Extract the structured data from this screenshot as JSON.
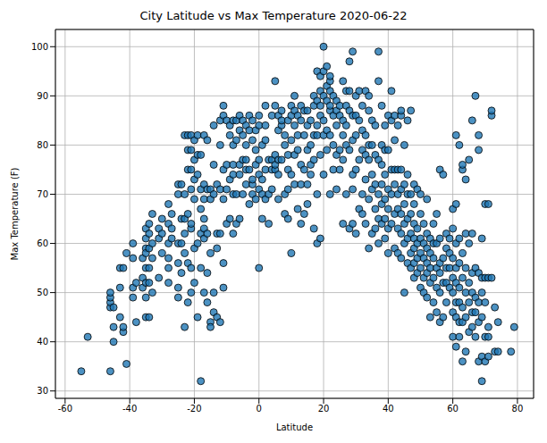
{
  "chart_data": {
    "type": "scatter",
    "title": "City Latitude vs Max Temperature 2020-06-22",
    "x_label": "Latitude",
    "y_label": "Max Temperature (F)",
    "color": "#1f77b4",
    "marker": "circle",
    "grid": true,
    "xlim": [
      -63,
      85
    ],
    "ylim": [
      28.5,
      103.5
    ],
    "xticks": [
      -60,
      -40,
      -20,
      0,
      20,
      40,
      60,
      80
    ],
    "yticks": [
      30,
      40,
      50,
      60,
      70,
      80,
      90,
      100
    ],
    "x": [
      -55,
      -53,
      -46,
      -46,
      -46,
      -46,
      -46,
      -45,
      -45,
      -45,
      -43,
      -43,
      -43,
      -42,
      -42,
      -42,
      -41,
      -41,
      -39,
      -39,
      -39,
      -39,
      -38,
      -38,
      -36,
      -36,
      -36,
      -35,
      -35,
      -35,
      -35,
      -35,
      -35,
      -35,
      -35,
      -34,
      -34,
      -34,
      -34,
      -34,
      -34,
      -33,
      -33,
      -33,
      -33,
      -31,
      -31,
      -31,
      -30,
      -30,
      -30,
      -28,
      -28,
      -28,
      -28,
      -28,
      -28,
      -27,
      -27,
      -27,
      -25,
      -25,
      -25,
      -25,
      -25,
      -25,
      -24,
      -24,
      -24,
      -24,
      -23,
      -23,
      -23,
      -23,
      -23,
      -23,
      -22,
      -22,
      -22,
      -22,
      -22,
      -22,
      -21,
      -21,
      -21,
      -21,
      -21,
      -21,
      -21,
      -21,
      -20,
      -20,
      -20,
      -20,
      -20,
      -20,
      -19,
      -19,
      -19,
      -19,
      -19,
      -18,
      -18,
      -18,
      -18,
      -18,
      -18,
      -17,
      -17,
      -17,
      -17,
      -17,
      -17,
      -17,
      -16,
      -16,
      -16,
      -16,
      -16,
      -15,
      -15,
      -15,
      -15,
      -15,
      -14,
      -14,
      -14,
      -14,
      -14,
      -13,
      -13,
      -13,
      -13,
      -12,
      -12,
      -12,
      -12,
      -12,
      -11,
      -11,
      -11,
      -11,
      -11,
      -11,
      -10,
      -10,
      -10,
      -10,
      -9,
      -9,
      -9,
      -9,
      -8,
      -8,
      -8,
      -8,
      -8,
      -8,
      -7,
      -7,
      -7,
      -7,
      -6,
      -6,
      -6,
      -6,
      -6,
      -5,
      -5,
      -5,
      -5,
      -4,
      -4,
      -4,
      -4,
      -4,
      -3,
      -3,
      -3,
      -3,
      -2,
      -2,
      -2,
      -2,
      -2,
      -1,
      -1,
      -1,
      -1,
      0,
      0,
      0,
      0,
      0,
      0,
      1,
      1,
      1,
      1,
      2,
      2,
      2,
      2,
      2,
      3,
      3,
      3,
      4,
      4,
      4,
      4,
      5,
      5,
      5,
      5,
      5,
      6,
      6,
      6,
      6,
      6,
      7,
      7,
      7,
      7,
      8,
      8,
      8,
      8,
      9,
      9,
      9,
      9,
      9,
      10,
      10,
      10,
      10,
      10,
      11,
      11,
      11,
      11,
      11,
      12,
      12,
      12,
      12,
      13,
      13,
      13,
      13,
      13,
      14,
      14,
      14,
      14,
      15,
      15,
      15,
      15,
      15,
      16,
      16,
      16,
      16,
      17,
      17,
      17,
      17,
      17,
      18,
      18,
      18,
      18,
      18,
      18,
      19,
      19,
      19,
      19,
      19,
      19,
      20,
      20,
      20,
      20,
      20,
      20,
      21,
      21,
      21,
      21,
      21,
      22,
      22,
      22,
      22,
      22,
      22,
      22,
      23,
      23,
      23,
      23,
      24,
      24,
      24,
      24,
      24,
      25,
      25,
      25,
      25,
      26,
      26,
      26,
      26,
      26,
      27,
      27,
      27,
      27,
      27,
      28,
      28,
      28,
      28,
      28,
      29,
      29,
      29,
      29,
      29,
      29,
      30,
      30,
      30,
      30,
      30,
      31,
      31,
      31,
      31,
      32,
      32,
      32,
      32,
      32,
      33,
      33,
      33,
      33,
      33,
      34,
      34,
      34,
      34,
      34,
      34,
      35,
      35,
      35,
      35,
      35,
      36,
      36,
      36,
      36,
      36,
      37,
      37,
      37,
      37,
      37,
      37,
      38,
      38,
      38,
      38,
      38,
      38,
      39,
      39,
      39,
      39,
      39,
      39,
      40,
      40,
      40,
      40,
      40,
      40,
      41,
      41,
      41,
      41,
      41,
      42,
      42,
      42,
      42,
      42,
      42,
      43,
      43,
      43,
      43,
      43,
      43,
      44,
      44,
      44,
      44,
      44,
      44,
      44,
      45,
      45,
      45,
      45,
      45,
      45,
      46,
      46,
      46,
      46,
      46,
      46,
      47,
      47,
      47,
      47,
      47,
      47,
      48,
      48,
      48,
      48,
      48,
      48,
      48,
      49,
      49,
      49,
      49,
      49,
      50,
      50,
      50,
      50,
      50,
      50,
      51,
      51,
      51,
      51,
      51,
      52,
      52,
      52,
      52,
      52,
      52,
      53,
      53,
      53,
      53,
      53,
      54,
      54,
      54,
      54,
      54,
      55,
      55,
      55,
      55,
      55,
      56,
      56,
      56,
      56,
      56,
      56,
      57,
      57,
      57,
      57,
      58,
      58,
      58,
      58,
      58,
      59,
      59,
      59,
      59,
      60,
      60,
      60,
      60,
      60,
      60,
      60,
      61,
      61,
      61,
      61,
      61,
      61,
      61,
      61,
      62,
      62,
      62,
      62,
      62,
      62,
      62,
      63,
      63,
      63,
      63,
      63,
      63,
      63,
      64,
      64,
      64,
      64,
      64,
      64,
      65,
      65,
      65,
      65,
      65,
      66,
      66,
      66,
      66,
      66,
      66,
      67,
      67,
      67,
      67,
      67,
      68,
      68,
      68,
      68,
      68,
      68,
      69,
      69,
      69,
      69,
      69,
      69,
      70,
      70,
      70,
      70,
      70,
      71,
      71,
      71,
      71,
      71,
      72,
      72,
      72,
      73,
      73,
      74,
      74,
      78,
      79
    ],
    "values": [
      34,
      41,
      47,
      48,
      49,
      34,
      50,
      43,
      40,
      47,
      51,
      55,
      45,
      42,
      43,
      55,
      35.5,
      58,
      60,
      57,
      49,
      51,
      44,
      52,
      57,
      51,
      53,
      45,
      61,
      63,
      59,
      58,
      55,
      49,
      52,
      45,
      52,
      59,
      64,
      62,
      55,
      60,
      66,
      50,
      57,
      61,
      63,
      53,
      62,
      58,
      65,
      64,
      68,
      57,
      60,
      52,
      55,
      63,
      61,
      66,
      70,
      72,
      56,
      51,
      49,
      60,
      65,
      60,
      54,
      72,
      43,
      62,
      70,
      82,
      58,
      65,
      66,
      75,
      79,
      82,
      48,
      56,
      63,
      64,
      55,
      50,
      79,
      82,
      75,
      71,
      69,
      73,
      77,
      81,
      52,
      59,
      60,
      74,
      78,
      82,
      45,
      62,
      67,
      55,
      78,
      32,
      71,
      61,
      63,
      65,
      69,
      72,
      50,
      82,
      54,
      62,
      71,
      81,
      48,
      69,
      71,
      44,
      43,
      58,
      70,
      76,
      84,
      50,
      46,
      45,
      62,
      72,
      59,
      44,
      62,
      71,
      80,
      85,
      51,
      56,
      69,
      75,
      86,
      88,
      85,
      76,
      71,
      64,
      65,
      73,
      82,
      84,
      62,
      70,
      74,
      76,
      80,
      85,
      81,
      85,
      64,
      70,
      65,
      74,
      76,
      83,
      86,
      70,
      77,
      82,
      85,
      75,
      77,
      80,
      84,
      72,
      68,
      75,
      83,
      86,
      70,
      72,
      73,
      81,
      85,
      69,
      76,
      79,
      83,
      55,
      71,
      74,
      77,
      84,
      86,
      65,
      70,
      73,
      80,
      69,
      75,
      81,
      84,
      88,
      64,
      70,
      77,
      71,
      75,
      77,
      86,
      75,
      76,
      78,
      88,
      93,
      69,
      74,
      77,
      83,
      86,
      77,
      84,
      87,
      85,
      66,
      70,
      80,
      82,
      65,
      71,
      75,
      78,
      85,
      74,
      81,
      86,
      88,
      58,
      72,
      78,
      84,
      87,
      90,
      67,
      79,
      82,
      86,
      64,
      72,
      76,
      85,
      88,
      66,
      75,
      82,
      87,
      68,
      72,
      79,
      84,
      87,
      74,
      76,
      80,
      85,
      77,
      82,
      88,
      90,
      63,
      82,
      84,
      89,
      95,
      60,
      70,
      61,
      78,
      86,
      88,
      91,
      94,
      82,
      85,
      90,
      95,
      100,
      74,
      79,
      83,
      89,
      92,
      96,
      70,
      82,
      87,
      91,
      93,
      94,
      88,
      75,
      80,
      86,
      90,
      71,
      78,
      84,
      87,
      89,
      75,
      79,
      86,
      88,
      64,
      77,
      82,
      85,
      93,
      70,
      80,
      84,
      88,
      91,
      63,
      79,
      87,
      97,
      91,
      64,
      71,
      74,
      81,
      86,
      99,
      62,
      75,
      82,
      86,
      90,
      67,
      77,
      85,
      91,
      66,
      70,
      79,
      83,
      88,
      64,
      73,
      78,
      82,
      91,
      59,
      69,
      77,
      80,
      87,
      90,
      62,
      71,
      74,
      80,
      85,
      63,
      67,
      72,
      78,
      84,
      60,
      65,
      70,
      77,
      99,
      93,
      64,
      68,
      72,
      76,
      80,
      88,
      61,
      65,
      69,
      74,
      79,
      84,
      58,
      63,
      67,
      71,
      79,
      86,
      64,
      70,
      75,
      85,
      91,
      59,
      66,
      72,
      75,
      81,
      86,
      58,
      63,
      67,
      70,
      75,
      84,
      57,
      62,
      66,
      71,
      75,
      86,
      87,
      50,
      60,
      64,
      68,
      72,
      80,
      56,
      61,
      65,
      70,
      74,
      85,
      55,
      58,
      62,
      66,
      70,
      87,
      53,
      56,
      59,
      61,
      64,
      68,
      72,
      54,
      57,
      60,
      63,
      71,
      51,
      55,
      58,
      61,
      66,
      70,
      50,
      53,
      57,
      60,
      64,
      49,
      54,
      56,
      59,
      62,
      69,
      45,
      52,
      55,
      58,
      61,
      48,
      53,
      57,
      60,
      64,
      46,
      51,
      55,
      60,
      66,
      44,
      50,
      54,
      56,
      61,
      75,
      45,
      52,
      57,
      74,
      48,
      52,
      55,
      59,
      62,
      51,
      55,
      58,
      61,
      41,
      46,
      50,
      53,
      57,
      63,
      67,
      39,
      45,
      48,
      52,
      55,
      60,
      82,
      68,
      41,
      44,
      48,
      51,
      56,
      61,
      80,
      36,
      44,
      47,
      53,
      58,
      75,
      76,
      38,
      45,
      50,
      55,
      62,
      73,
      42,
      48,
      52,
      60,
      77,
      43,
      46,
      50,
      54,
      62,
      85,
      41,
      46,
      49,
      55,
      90,
      36,
      44,
      48,
      54,
      82,
      79,
      32,
      37,
      45,
      50,
      53,
      61,
      36,
      41,
      48,
      53,
      68,
      37,
      41,
      43,
      53,
      68,
      86,
      87,
      53,
      38,
      47,
      38,
      44,
      38,
      43
    ]
  }
}
